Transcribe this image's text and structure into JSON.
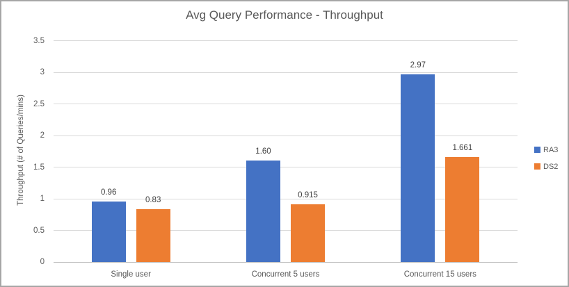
{
  "chart_data": {
    "type": "bar",
    "title": "Avg Query Performance - Throughput",
    "xlabel": "",
    "ylabel": "Throughput (# of Queries/mins)",
    "categories": [
      "Single user",
      "Concurrent 5 users",
      "Concurrent 15 users"
    ],
    "series": [
      {
        "name": "RA3",
        "color": "#4472C4",
        "values": [
          0.96,
          1.6,
          2.97
        ],
        "data_labels": [
          "0.96",
          "1.60",
          "2.97"
        ]
      },
      {
        "name": "DS2",
        "color": "#ED7D31",
        "values": [
          0.83,
          0.915,
          1.661
        ],
        "data_labels": [
          "0.83",
          "0.915",
          "1.661"
        ]
      }
    ],
    "ylim": [
      0,
      3.5
    ],
    "ytick_step": 0.5,
    "yticks": [
      "0",
      "0.5",
      "1",
      "1.5",
      "2",
      "2.5",
      "3",
      "3.5"
    ],
    "grid": true,
    "legend_position": "right"
  },
  "colors": {
    "title_text": "#595959",
    "axis_text": "#595959",
    "data_label_text": "#404040",
    "gridline": "#D9D9D9",
    "axis_line": "#BFBFBF",
    "chart_border": "#A6A6A6",
    "background": "#FFFFFF",
    "series_ra3": "#4472C4",
    "series_ds2": "#ED7D31"
  }
}
